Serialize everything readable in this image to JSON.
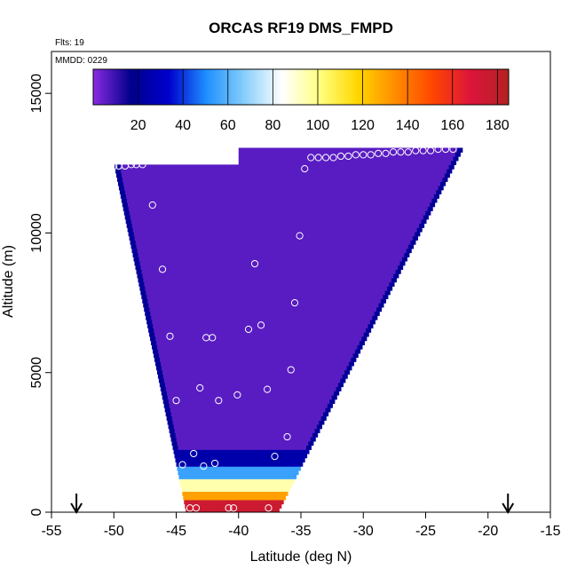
{
  "chart_data": {
    "type": "heatmap",
    "title": "ORCAS RF19 DMS_FMPD",
    "flights_label": "Flts: 19",
    "date_label": "MMDD: 0229",
    "xlabel": "Latitude (deg N)",
    "ylabel": "Altitude (m)",
    "xlim": [
      -55,
      -15
    ],
    "ylim": [
      0,
      16500
    ],
    "x_ticks": [
      -55,
      -50,
      -45,
      -40,
      -35,
      -30,
      -25,
      -20,
      -15
    ],
    "y_ticks": [
      0,
      5000,
      10000,
      15000
    ],
    "colorbar": {
      "range": [
        0,
        185
      ],
      "ticks": [
        20,
        40,
        60,
        80,
        100,
        120,
        140,
        160,
        180
      ],
      "stops": [
        "#8a2be2",
        "#00008b",
        "#0000cd",
        "#1e90ff",
        "#87cefa",
        "#ffffff",
        "#ffff80",
        "#ffd700",
        "#ff8c00",
        "#ff4500",
        "#dc143c",
        "#b22222"
      ]
    },
    "domain_polygon": {
      "top_left": [
        -50,
        12500
      ],
      "top_right": [
        -22,
        13000
      ],
      "bottom_left": [
        -44.2,
        0
      ],
      "bottom_right": [
        -36.8,
        0
      ]
    },
    "field": [
      {
        "zmax": 400,
        "value": 175
      },
      {
        "zmax": 800,
        "value": 130
      },
      {
        "zmax": 1200,
        "value": 95
      },
      {
        "zmax": 1600,
        "value": 55
      },
      {
        "zmax": 2300,
        "value": 25
      },
      {
        "zmax": 16000,
        "value": 6
      }
    ],
    "edge_value": 20,
    "observations": [
      {
        "lat": -50,
        "alt": 12400
      },
      {
        "lat": -49.6,
        "alt": 12400
      },
      {
        "lat": -49.1,
        "alt": 12400
      },
      {
        "lat": -48.6,
        "alt": 12450
      },
      {
        "lat": -48.2,
        "alt": 12450
      },
      {
        "lat": -47.7,
        "alt": 12450
      },
      {
        "lat": -46.9,
        "alt": 11000
      },
      {
        "lat": -46.1,
        "alt": 8700
      },
      {
        "lat": -45.5,
        "alt": 6300
      },
      {
        "lat": -45,
        "alt": 4000
      },
      {
        "lat": -44.5,
        "alt": 1700
      },
      {
        "lat": -43.6,
        "alt": 2100
      },
      {
        "lat": -43.1,
        "alt": 4450
      },
      {
        "lat": -42.6,
        "alt": 6250
      },
      {
        "lat": -42.1,
        "alt": 6250
      },
      {
        "lat": -41.6,
        "alt": 4000
      },
      {
        "lat": -42.8,
        "alt": 1650
      },
      {
        "lat": -41.9,
        "alt": 1750
      },
      {
        "lat": -40.1,
        "alt": 4200
      },
      {
        "lat": -39.2,
        "alt": 6550
      },
      {
        "lat": -38.7,
        "alt": 8900
      },
      {
        "lat": -38.2,
        "alt": 6700
      },
      {
        "lat": -37.7,
        "alt": 4400
      },
      {
        "lat": -37.1,
        "alt": 2000
      },
      {
        "lat": -36.1,
        "alt": 2700
      },
      {
        "lat": -35.8,
        "alt": 5100
      },
      {
        "lat": -35.5,
        "alt": 7500
      },
      {
        "lat": -35.1,
        "alt": 9900
      },
      {
        "lat": -34.7,
        "alt": 12300
      },
      {
        "lat": -34.2,
        "alt": 12700
      },
      {
        "lat": -33.6,
        "alt": 12700
      },
      {
        "lat": -33,
        "alt": 12700
      },
      {
        "lat": -32.4,
        "alt": 12700
      },
      {
        "lat": -31.8,
        "alt": 12750
      },
      {
        "lat": -31.2,
        "alt": 12750
      },
      {
        "lat": -30.6,
        "alt": 12800
      },
      {
        "lat": -30,
        "alt": 12800
      },
      {
        "lat": -29.4,
        "alt": 12800
      },
      {
        "lat": -28.8,
        "alt": 12850
      },
      {
        "lat": -28.2,
        "alt": 12850
      },
      {
        "lat": -27.6,
        "alt": 12900
      },
      {
        "lat": -27,
        "alt": 12900
      },
      {
        "lat": -26.4,
        "alt": 12900
      },
      {
        "lat": -25.8,
        "alt": 12950
      },
      {
        "lat": -25.2,
        "alt": 12950
      },
      {
        "lat": -24.6,
        "alt": 12950
      },
      {
        "lat": -24,
        "alt": 13000
      },
      {
        "lat": -23.4,
        "alt": 13000
      },
      {
        "lat": -22.8,
        "alt": 13000
      },
      {
        "lat": -43.9,
        "alt": 150
      },
      {
        "lat": -43.4,
        "alt": 150
      },
      {
        "lat": -40.8,
        "alt": 150
      },
      {
        "lat": -40.4,
        "alt": 150
      },
      {
        "lat": -37.6,
        "alt": 150
      }
    ],
    "arrows": [
      -53,
      -18.4
    ]
  }
}
